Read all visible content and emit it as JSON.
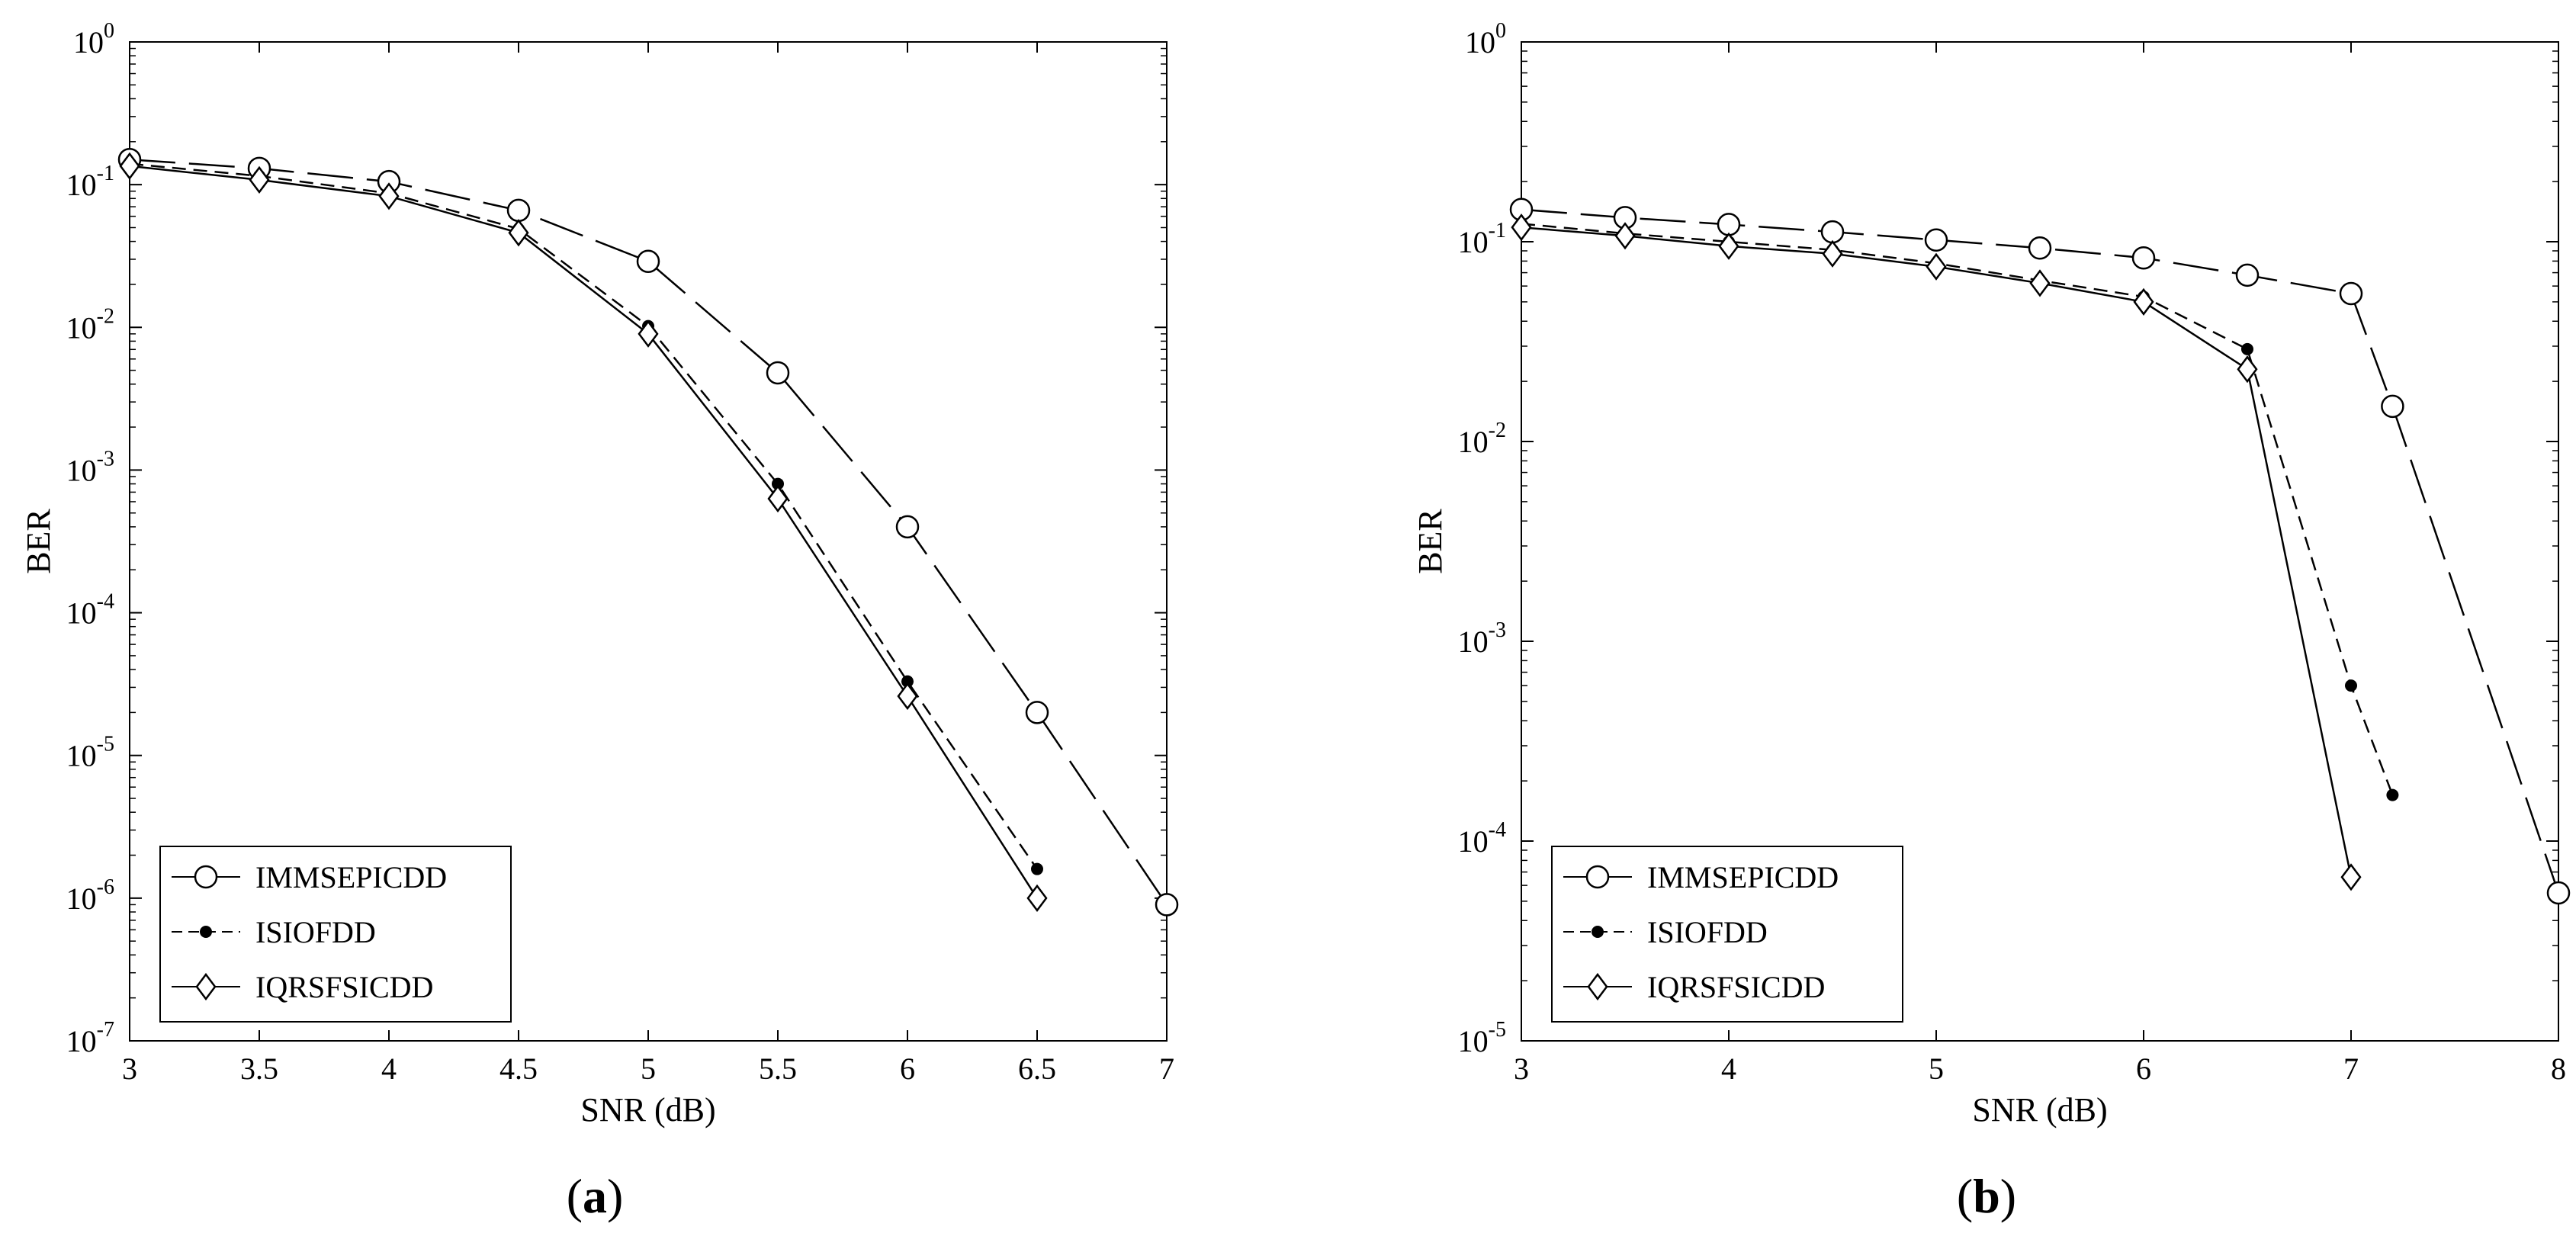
{
  "chart_data": [
    {
      "type": "line",
      "panel_label": "a",
      "xlabel": "SNR (dB)",
      "ylabel": "BER",
      "xlim": [
        3,
        7
      ],
      "ylim": [
        1e-07,
        1
      ],
      "yscale": "log",
      "grid": false,
      "legend_position": "bottom-left",
      "x_ticks": [
        "3",
        "3.5",
        "4",
        "4.5",
        "5",
        "5.5",
        "6",
        "6.5",
        "7"
      ],
      "y_ticks": [
        {
          "base": "10",
          "exp": "0",
          "value": 1
        },
        {
          "base": "10",
          "exp": "-1",
          "value": 0.1
        },
        {
          "base": "10",
          "exp": "-2",
          "value": 0.01
        },
        {
          "base": "10",
          "exp": "-3",
          "value": 0.001
        },
        {
          "base": "10",
          "exp": "-4",
          "value": 0.0001
        },
        {
          "base": "10",
          "exp": "-5",
          "value": 1e-05
        },
        {
          "base": "10",
          "exp": "-6",
          "value": 1e-06
        },
        {
          "base": "10",
          "exp": "-7",
          "value": 1e-07
        }
      ],
      "series": [
        {
          "name": "IMMSEPICDD",
          "marker": "circle",
          "dash": "long",
          "x": [
            3,
            3.5,
            4,
            4.5,
            5,
            5.5,
            6,
            6.5,
            7
          ],
          "y": [
            0.15,
            0.13,
            0.105,
            0.066,
            0.029,
            0.0048,
            0.0004,
            2e-05,
            9e-07
          ]
        },
        {
          "name": "ISIOFDD",
          "marker": "dot",
          "dash": "short",
          "x": [
            3,
            3.5,
            4,
            4.5,
            5,
            5.5,
            6,
            6.5
          ],
          "y": [
            0.14,
            0.115,
            0.087,
            0.049,
            0.0102,
            0.0008,
            3.3e-05,
            1.6e-06
          ]
        },
        {
          "name": "IQRSFSICDD",
          "marker": "diamond",
          "dash": "solid",
          "x": [
            3,
            3.5,
            4,
            4.5,
            5,
            5.5,
            6,
            6.5
          ],
          "y": [
            0.135,
            0.108,
            0.083,
            0.046,
            0.009,
            0.00063,
            2.6e-05,
            1e-06
          ]
        }
      ]
    },
    {
      "type": "line",
      "panel_label": "b",
      "xlabel": "SNR (dB)",
      "ylabel": "BER",
      "xlim": [
        3,
        8
      ],
      "ylim": [
        1e-05,
        1
      ],
      "yscale": "log",
      "grid": false,
      "legend_position": "bottom-left",
      "x_ticks": [
        "3",
        "4",
        "5",
        "6",
        "7",
        "8"
      ],
      "y_ticks": [
        {
          "base": "10",
          "exp": "0",
          "value": 1
        },
        {
          "base": "10",
          "exp": "-1",
          "value": 0.1
        },
        {
          "base": "10",
          "exp": "-2",
          "value": 0.01
        },
        {
          "base": "10",
          "exp": "-3",
          "value": 0.001
        },
        {
          "base": "10",
          "exp": "-4",
          "value": 0.0001
        },
        {
          "base": "10",
          "exp": "-5",
          "value": 1e-05
        }
      ],
      "series": [
        {
          "name": "IMMSEPICDD",
          "marker": "circle",
          "dash": "long",
          "x": [
            3,
            3.5,
            4,
            4.5,
            5,
            5.5,
            6,
            6.5,
            7,
            7.2,
            8
          ],
          "y": [
            0.145,
            0.132,
            0.122,
            0.112,
            0.102,
            0.093,
            0.083,
            0.068,
            0.055,
            0.015,
            5.5e-05
          ]
        },
        {
          "name": "ISIOFDD",
          "marker": "dot",
          "dash": "short",
          "x": [
            3,
            3.5,
            4,
            4.5,
            5,
            5.5,
            6,
            6.5,
            7,
            7.2
          ],
          "y": [
            0.123,
            0.11,
            0.1,
            0.091,
            0.078,
            0.064,
            0.053,
            0.029,
            0.0006,
            0.00017
          ]
        },
        {
          "name": "IQRSFSICDD",
          "marker": "diamond",
          "dash": "solid",
          "x": [
            3,
            3.5,
            4,
            4.5,
            5,
            5.5,
            6,
            6.5,
            7
          ],
          "y": [
            0.118,
            0.107,
            0.095,
            0.087,
            0.075,
            0.062,
            0.05,
            0.023,
            6.6e-05
          ]
        }
      ]
    }
  ]
}
